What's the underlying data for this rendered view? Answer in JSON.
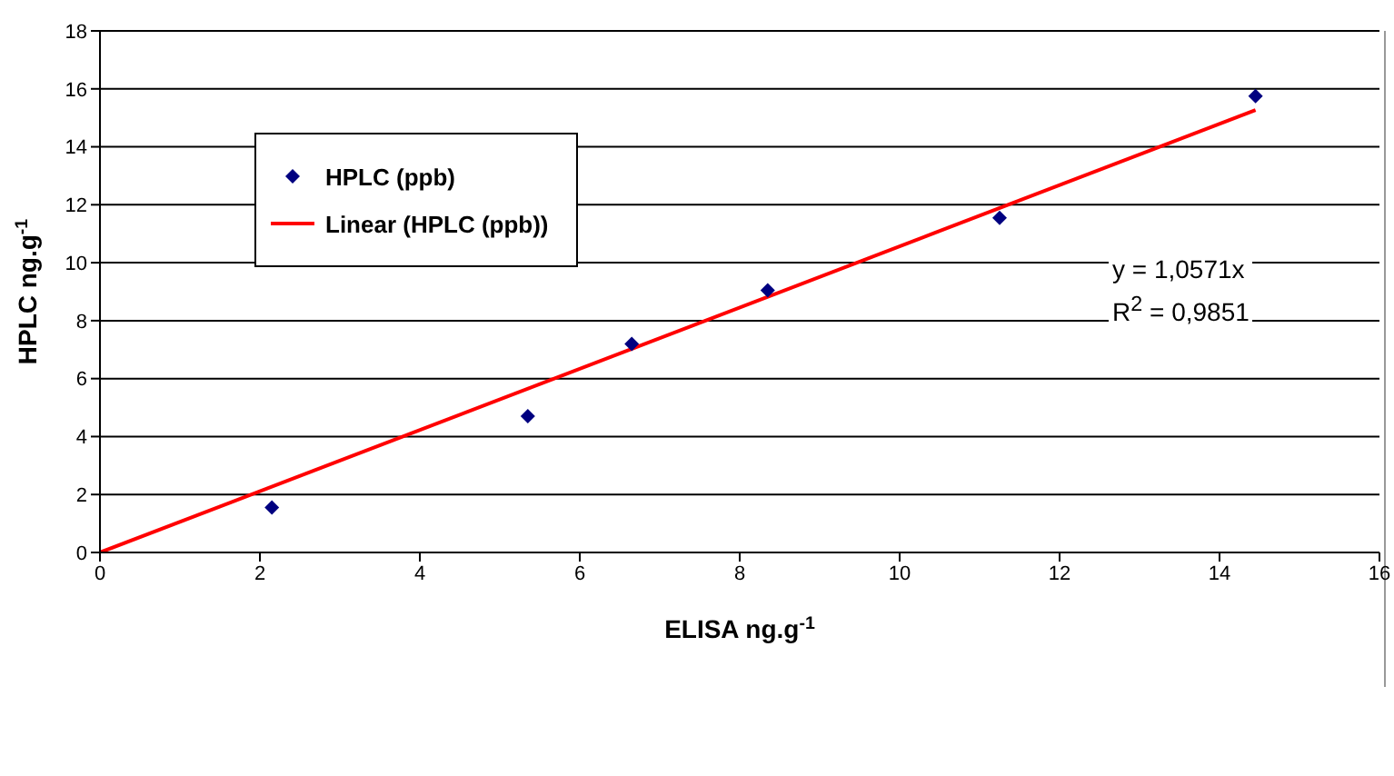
{
  "chart_data": {
    "type": "scatter",
    "xlabel": "ELISA ng.g$^{-1}$",
    "ylabel": "HPLC ng.g$^{-1}$",
    "series": [
      {
        "name": "HPLC (ppb)",
        "marker": "diamond",
        "color": "#000080",
        "x": [
          2.15,
          5.35,
          6.65,
          8.35,
          11.25,
          14.45
        ],
        "values": [
          1.55,
          4.7,
          7.2,
          9.05,
          11.55,
          15.75
        ]
      },
      {
        "name": "Linear (HPLC (ppb))",
        "type": "line",
        "marker": "none",
        "line_style": "solid",
        "color": "#ff0000",
        "x": [
          0,
          14.45
        ],
        "values": [
          0,
          15.27
        ]
      }
    ],
    "xlim": [
      0,
      16
    ],
    "xticks": [
      0,
      2,
      4,
      6,
      8,
      10,
      12,
      14,
      16
    ],
    "ylim": [
      0,
      18
    ],
    "yticks": [
      0,
      2,
      4,
      6,
      8,
      10,
      12,
      14,
      16,
      18
    ],
    "grid": "y",
    "legend": "top left",
    "annotations": [
      "y = 1,0571x",
      "R$^{2}$ = 0,9851"
    ]
  }
}
